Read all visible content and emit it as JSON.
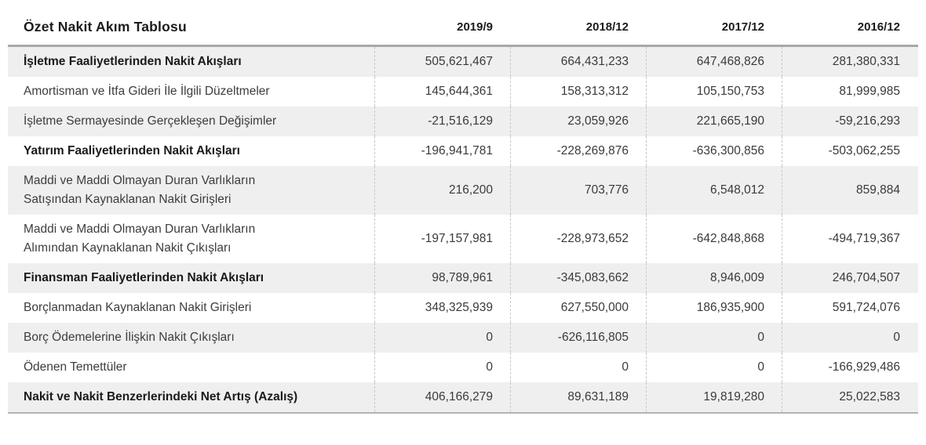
{
  "table": {
    "title": "Özet Nakit Akım Tablosu",
    "columns": [
      "2019/9",
      "2018/12",
      "2017/12",
      "2016/12"
    ],
    "rows": [
      {
        "label_lines": [
          "İşletme Faaliyetlerinden Nakit Akışları"
        ],
        "bold": true,
        "values": [
          "505,621,467",
          "664,431,233",
          "647,468,826",
          "281,380,331"
        ]
      },
      {
        "label_lines": [
          "Amortisman ve İtfa Gideri İle İlgili Düzeltmeler"
        ],
        "bold": false,
        "values": [
          "145,644,361",
          "158,313,312",
          "105,150,753",
          "81,999,985"
        ]
      },
      {
        "label_lines": [
          "İşletme Sermayesinde Gerçekleşen Değişimler"
        ],
        "bold": false,
        "values": [
          "-21,516,129",
          "23,059,926",
          "221,665,190",
          "-59,216,293"
        ]
      },
      {
        "label_lines": [
          "Yatırım Faaliyetlerinden Nakit Akışları"
        ],
        "bold": true,
        "values": [
          "-196,941,781",
          "-228,269,876",
          "-636,300,856",
          "-503,062,255"
        ]
      },
      {
        "label_lines": [
          "Maddi ve Maddi Olmayan Duran Varlıkların",
          "Satışından Kaynaklanan Nakit Girişleri"
        ],
        "bold": false,
        "values": [
          "216,200",
          "703,776",
          "6,548,012",
          "859,884"
        ]
      },
      {
        "label_lines": [
          "Maddi ve Maddi Olmayan Duran Varlıkların",
          "Alımından Kaynaklanan Nakit Çıkışları"
        ],
        "bold": false,
        "values": [
          "-197,157,981",
          "-228,973,652",
          "-642,848,868",
          "-494,719,367"
        ]
      },
      {
        "label_lines": [
          "Finansman Faaliyetlerinden Nakit Akışları"
        ],
        "bold": true,
        "values": [
          "98,789,961",
          "-345,083,662",
          "8,946,009",
          "246,704,507"
        ]
      },
      {
        "label_lines": [
          "Borçlanmadan Kaynaklanan Nakit Girişleri"
        ],
        "bold": false,
        "values": [
          "348,325,939",
          "627,550,000",
          "186,935,900",
          "591,724,076"
        ]
      },
      {
        "label_lines": [
          "Borç Ödemelerine İlişkin Nakit Çıkışları"
        ],
        "bold": false,
        "values": [
          "0",
          "-626,116,805",
          "0",
          "0"
        ]
      },
      {
        "label_lines": [
          "Ödenen Temettüler"
        ],
        "bold": false,
        "values": [
          "0",
          "0",
          "0",
          "-166,929,486"
        ]
      },
      {
        "label_lines": [
          "Nakit ve Nakit Benzerlerindeki Net Artış (Azalış)"
        ],
        "bold": true,
        "values": [
          "406,166,279",
          "89,631,189",
          "19,819,280",
          "25,022,583"
        ]
      }
    ]
  },
  "colors": {
    "row_alt_background": "#efefef",
    "top_rule": "#a8a8a8",
    "bottom_rule": "#b3b3b3",
    "column_separator": "#c7c7c7",
    "heading_text": "#1c1c1c",
    "body_text": "#3d3d3d"
  },
  "chart_data": {
    "type": "table",
    "title": "Özet Nakit Akım Tablosu",
    "columns": [
      "2019/9",
      "2018/12",
      "2017/12",
      "2016/12"
    ],
    "rows": [
      {
        "label": "İşletme Faaliyetlerinden Nakit Akışları",
        "values": [
          505621467,
          664431233,
          647468826,
          281380331
        ]
      },
      {
        "label": "Amortisman ve İtfa Gideri İle İlgili Düzeltmeler",
        "values": [
          145644361,
          158313312,
          105150753,
          81999985
        ]
      },
      {
        "label": "İşletme Sermayesinde Gerçekleşen Değişimler",
        "values": [
          -21516129,
          23059926,
          221665190,
          -59216293
        ]
      },
      {
        "label": "Yatırım Faaliyetlerinden Nakit Akışları",
        "values": [
          -196941781,
          -228269876,
          -636300856,
          -503062255
        ]
      },
      {
        "label": "Maddi ve Maddi Olmayan Duran Varlıkların Satışından Kaynaklanan Nakit Girişleri",
        "values": [
          216200,
          703776,
          6548012,
          859884
        ]
      },
      {
        "label": "Maddi ve Maddi Olmayan Duran Varlıkların Alımından Kaynaklanan Nakit Çıkışları",
        "values": [
          -197157981,
          -228973652,
          -642848868,
          -494719367
        ]
      },
      {
        "label": "Finansman Faaliyetlerinden Nakit Akışları",
        "values": [
          98789961,
          -345083662,
          8946009,
          246704507
        ]
      },
      {
        "label": "Borçlanmadan Kaynaklanan Nakit Girişleri",
        "values": [
          348325939,
          627550000,
          186935900,
          591724076
        ]
      },
      {
        "label": "Borç Ödemelerine İlişkin Nakit Çıkışları",
        "values": [
          0,
          -626116805,
          0,
          0
        ]
      },
      {
        "label": "Ödenen Temettüler",
        "values": [
          0,
          0,
          0,
          -166929486
        ]
      },
      {
        "label": "Nakit ve Nakit Benzerlerindeki Net Artış (Azalış)",
        "values": [
          406166279,
          89631189,
          19819280,
          25022583
        ]
      }
    ]
  }
}
